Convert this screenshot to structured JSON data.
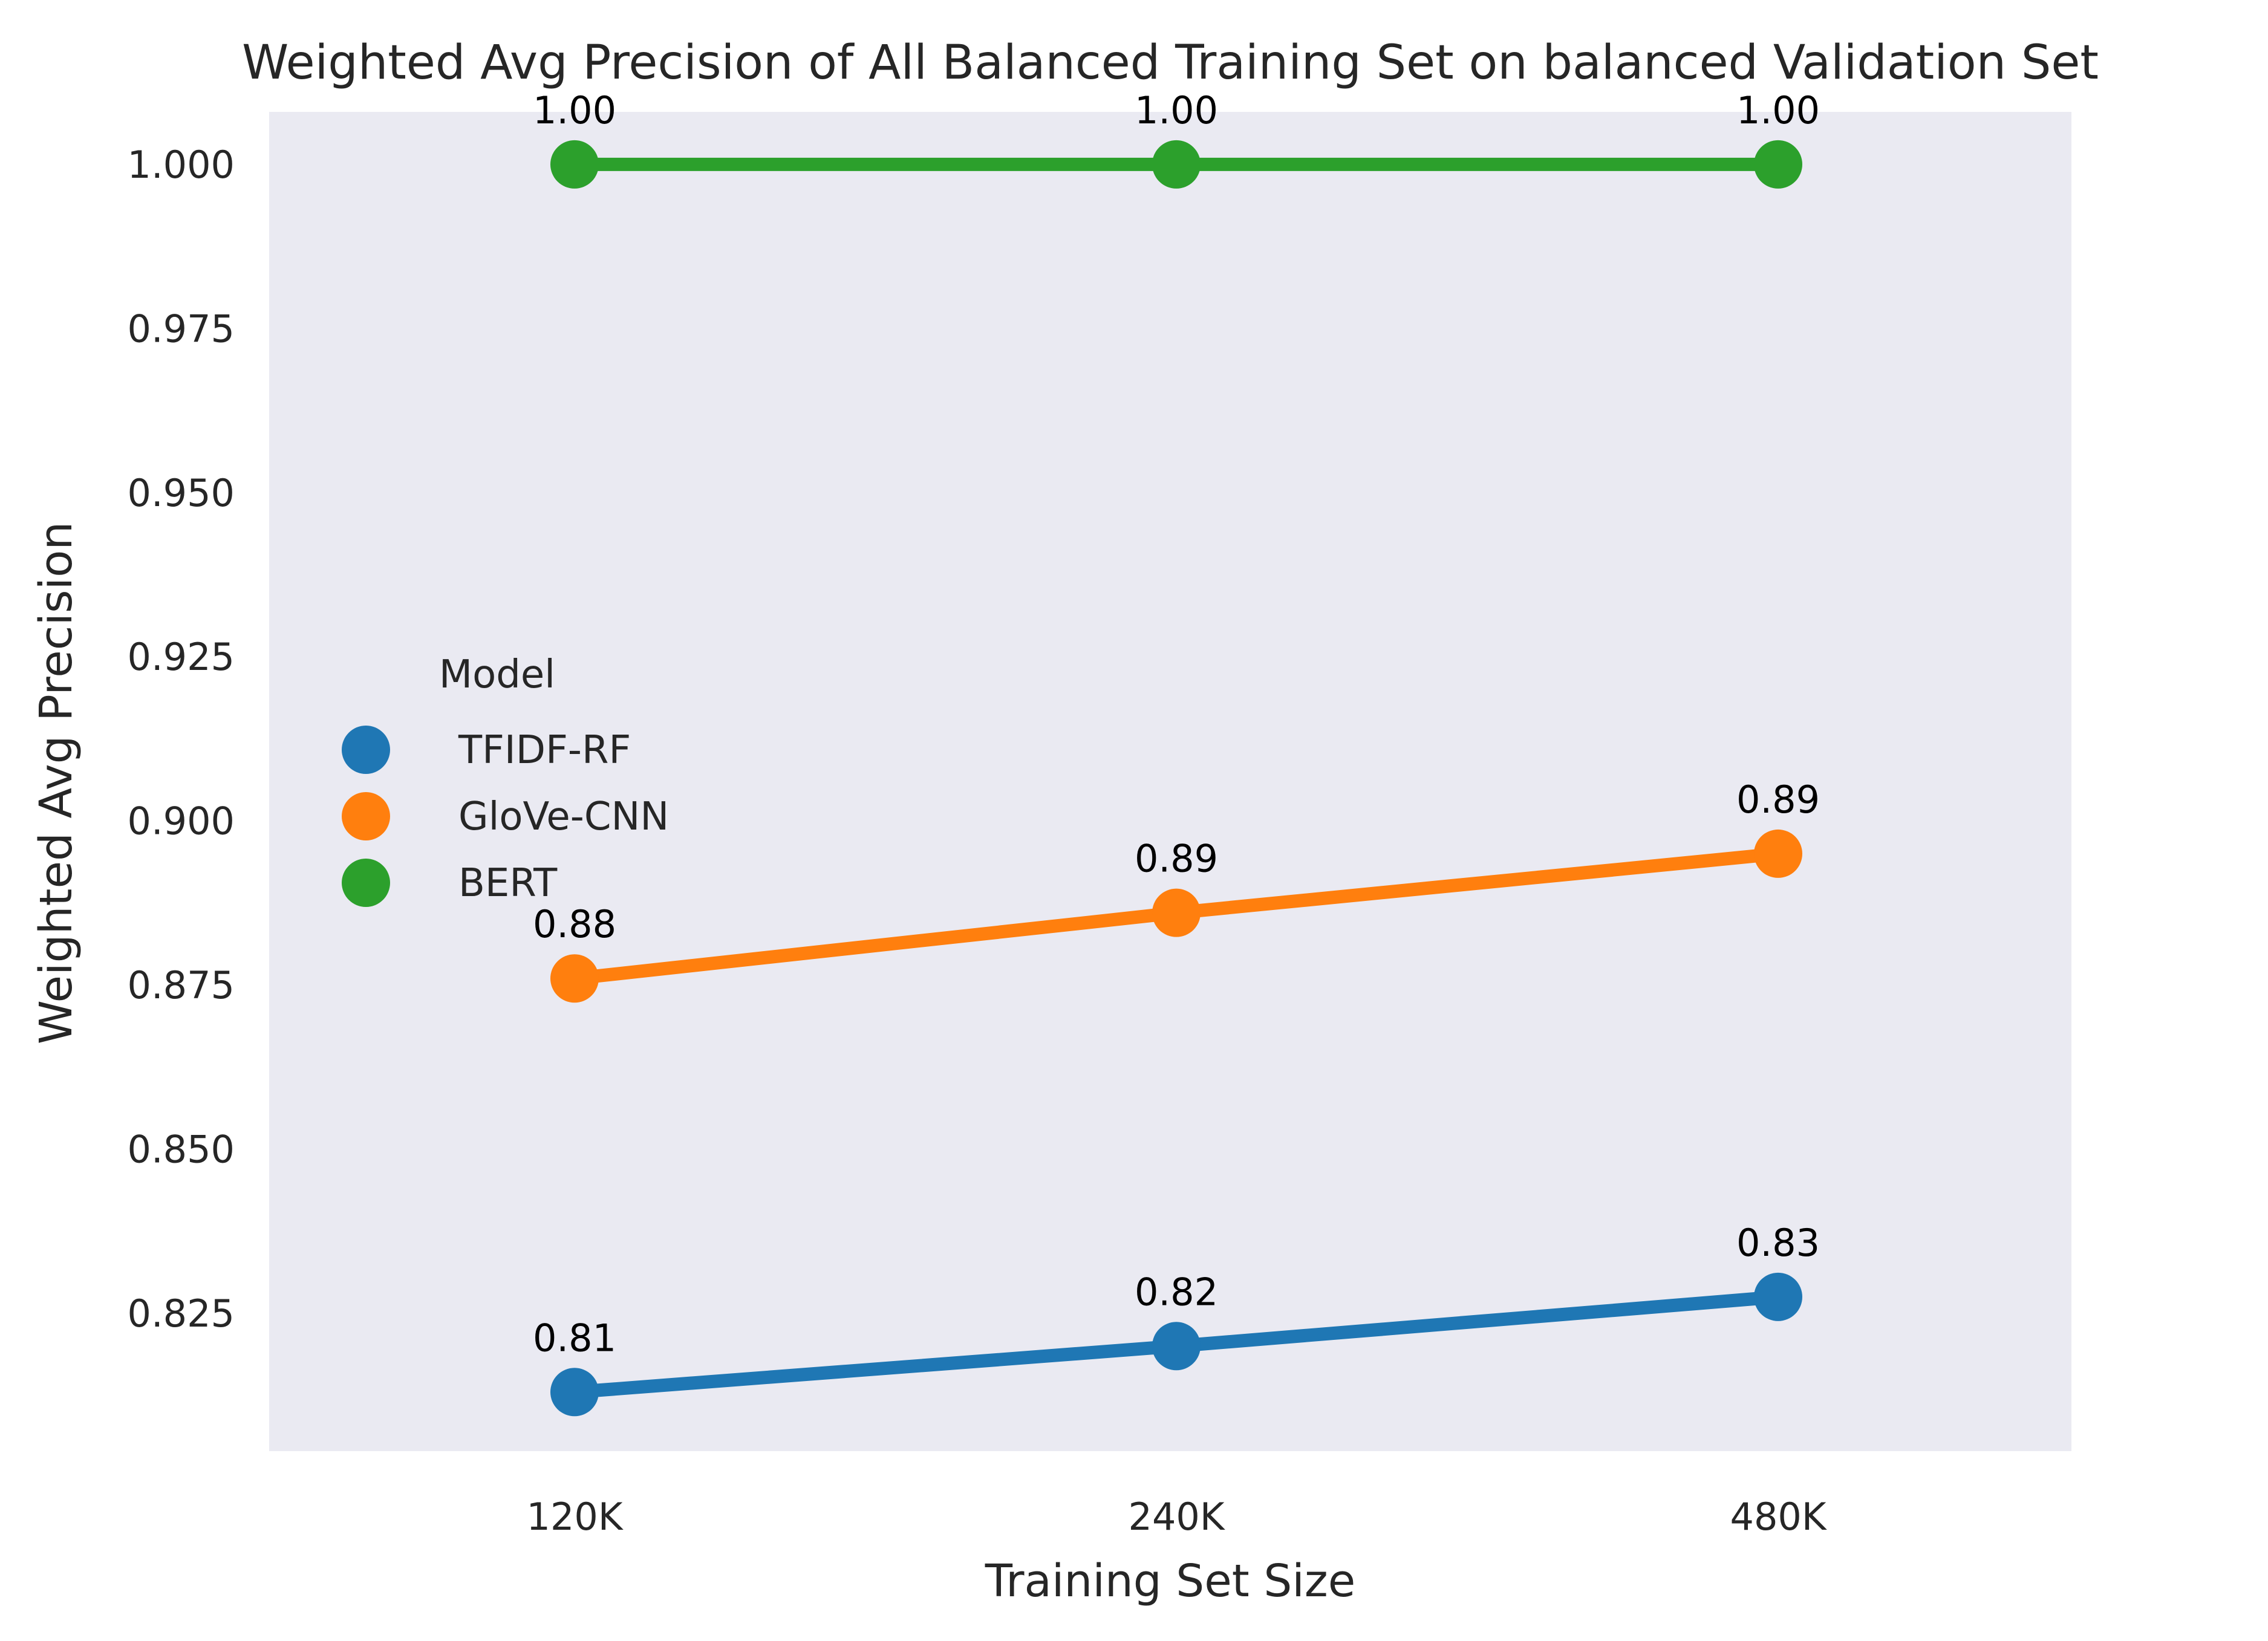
{
  "chart_data": {
    "type": "line",
    "title": "Weighted Avg Precision of All Balanced Training Set on balanced Validation Set",
    "xlabel": "Training Set Size",
    "ylabel": "Weighted Avg Precision",
    "categories": [
      "120K",
      "240K",
      "480K"
    ],
    "ylim": [
      0.804,
      1.008
    ],
    "yticks": [
      0.825,
      0.85,
      0.875,
      0.9,
      0.925,
      0.95,
      0.975,
      1.0
    ],
    "ytick_labels": [
      "0.825",
      "0.850",
      "0.875",
      "0.900",
      "0.925",
      "0.950",
      "0.975",
      "1.000"
    ],
    "grid": false,
    "background": "#eaeaf2",
    "legend": {
      "title": "Model",
      "placement": "center-left"
    },
    "series": [
      {
        "name": "TFIDF-RF",
        "color": "#1f77b4",
        "values": [
          0.813,
          0.82,
          0.8275
        ],
        "labels": [
          "0.81",
          "0.82",
          "0.83"
        ]
      },
      {
        "name": "GloVe-CNN",
        "color": "#ff7f0e",
        "values": [
          0.876,
          0.886,
          0.895
        ],
        "labels": [
          "0.88",
          "0.89",
          "0.89"
        ]
      },
      {
        "name": "BERT",
        "color": "#2ca02c",
        "values": [
          1.0,
          1.0,
          1.0
        ],
        "labels": [
          "1.00",
          "1.00",
          "1.00"
        ]
      }
    ]
  }
}
